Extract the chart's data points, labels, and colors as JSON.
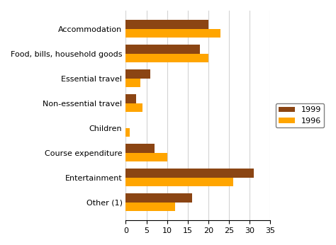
{
  "categories": [
    "Other (1)",
    "Entertainment",
    "Course expenditure",
    "Children",
    "Non-essential travel",
    "Essential travel",
    "Food, bills, household goods",
    "Accommodation"
  ],
  "values_1999": [
    16,
    31,
    7,
    0,
    2.5,
    6,
    18,
    20
  ],
  "values_1996": [
    12,
    26,
    10,
    1,
    4,
    3.5,
    20,
    23
  ],
  "color_1999": "#8B4513",
  "color_1996": "#FFA500",
  "legend_labels": [
    "1999",
    "1996"
  ],
  "xlim": [
    0,
    35
  ],
  "xticks": [
    0,
    5,
    10,
    15,
    20,
    25,
    30,
    35
  ],
  "bar_height": 0.35,
  "figsize": [
    4.74,
    3.46
  ],
  "dpi": 100
}
